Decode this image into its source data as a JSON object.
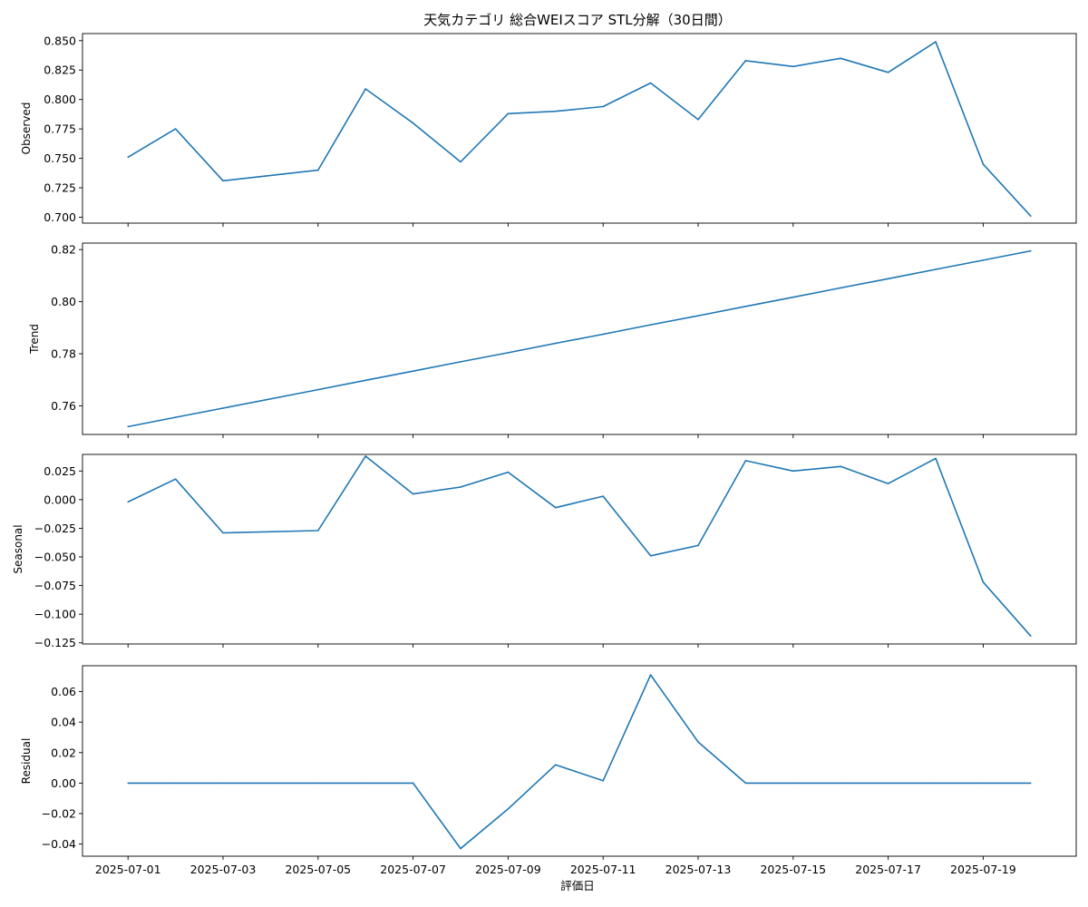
{
  "chart_data": {
    "type": "line",
    "title": "天気カテゴリ 総合WEIスコア STL分解（30日間）",
    "xlabel": "評価日",
    "x": [
      "2025-07-01",
      "2025-07-02",
      "2025-07-03",
      "2025-07-05",
      "2025-07-06",
      "2025-07-07",
      "2025-07-08",
      "2025-07-09",
      "2025-07-10",
      "2025-07-11",
      "2025-07-12",
      "2025-07-13",
      "2025-07-14",
      "2025-07-15",
      "2025-07-16",
      "2025-07-17",
      "2025-07-18",
      "2025-07-19",
      "2025-07-20"
    ],
    "x_ticks": [
      "2025-07-01",
      "2025-07-03",
      "2025-07-05",
      "2025-07-07",
      "2025-07-09",
      "2025-07-11",
      "2025-07-13",
      "2025-07-15",
      "2025-07-17",
      "2025-07-19"
    ],
    "xlim": [
      "2025-06-30T01:00",
      "2025-07-20T23:00"
    ],
    "line_color": "#1f77b4",
    "panels": [
      {
        "ylabel": "Observed",
        "ylim": [
          0.695,
          0.856
        ],
        "yticks": [
          0.7,
          0.725,
          0.75,
          0.775,
          0.8,
          0.825,
          0.85
        ],
        "ytick_labels": [
          "0.700",
          "0.725",
          "0.750",
          "0.775",
          "0.800",
          "0.825",
          "0.850"
        ],
        "values": [
          0.751,
          0.775,
          0.731,
          0.74,
          0.809,
          0.78,
          0.747,
          0.788,
          0.79,
          0.794,
          0.814,
          0.783,
          0.833,
          0.828,
          0.835,
          0.823,
          0.849,
          0.745,
          0.701
        ]
      },
      {
        "ylabel": "Trend",
        "ylim": [
          0.749,
          0.8225
        ],
        "yticks": [
          0.76,
          0.78,
          0.8,
          0.82
        ],
        "ytick_labels": [
          "0.76",
          "0.78",
          "0.80",
          "0.82"
        ],
        "values": [
          0.752,
          0.7556,
          0.7591,
          0.7662,
          0.7698,
          0.7733,
          0.7769,
          0.7804,
          0.784,
          0.7875,
          0.7911,
          0.7946,
          0.7982,
          0.8017,
          0.8053,
          0.8088,
          0.8124,
          0.8159,
          0.8195
        ]
      },
      {
        "ylabel": "Seasonal",
        "ylim": [
          -0.126,
          0.0395
        ],
        "yticks": [
          -0.125,
          -0.1,
          -0.075,
          -0.05,
          -0.025,
          0.0,
          0.025
        ],
        "ytick_labels": [
          "−0.125",
          "−0.100",
          "−0.075",
          "−0.050",
          "−0.025",
          "0.000",
          "0.025"
        ],
        "values": [
          -0.002,
          0.018,
          -0.029,
          -0.027,
          0.038,
          0.005,
          0.011,
          0.024,
          -0.007,
          0.003,
          -0.049,
          -0.04,
          0.034,
          0.025,
          0.029,
          0.014,
          0.036,
          -0.072,
          -0.119
        ]
      },
      {
        "ylabel": "Residual",
        "ylim": [
          -0.048,
          0.077
        ],
        "yticks": [
          -0.04,
          -0.02,
          0.0,
          0.02,
          0.04,
          0.06
        ],
        "ytick_labels": [
          "−0.04",
          "−0.02",
          "0.00",
          "0.02",
          "0.04",
          "0.06"
        ],
        "values": [
          0,
          0,
          0,
          0,
          0,
          0,
          -0.043,
          -0.017,
          0.012,
          0.0015,
          0.071,
          0.027,
          0,
          0,
          0,
          0,
          0,
          0,
          0
        ]
      }
    ]
  }
}
